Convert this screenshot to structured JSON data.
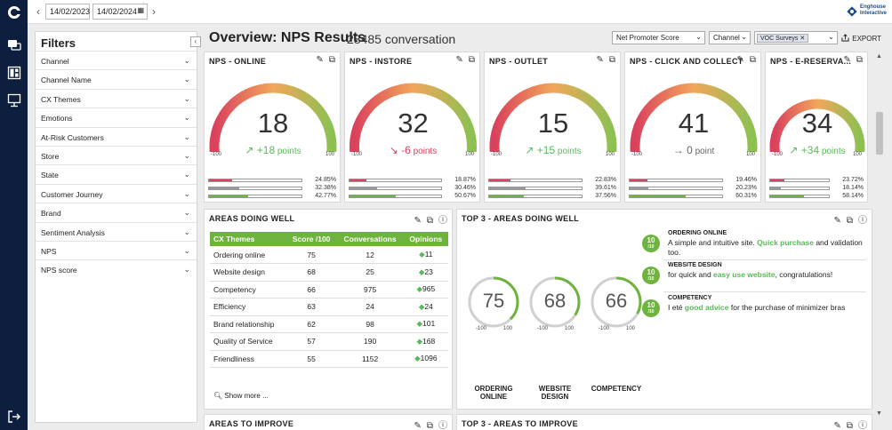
{
  "toolbar": {
    "date_from": "14/02/2023",
    "date_to": "14/02/2024"
  },
  "brand": {
    "name_line1": "Enghouse",
    "name_line2": "Interactive"
  },
  "filters": {
    "title": "Filters",
    "items": [
      "Channel",
      "Channel Name",
      "CX Themes",
      "Emotions",
      "At-Risk Customers",
      "Store",
      "State",
      "Customer Journey",
      "Brand",
      "Sentiment Analysis",
      "NPS",
      "NPS score"
    ]
  },
  "header": {
    "title": "Overview: NPS Results",
    "subtitle": "28485 conversation",
    "metric_select": "Net Promoter Score",
    "channel_select": "Channel",
    "survey_chip": "VOC Surveys",
    "export_label": "EXPORT"
  },
  "gauge_axis": {
    "min": "-100",
    "max": "100"
  },
  "nps_cards": [
    {
      "title": "NPS - ONLINE",
      "value": "18",
      "trend_dir": "up",
      "trend_value": "+18",
      "trend_unit": "points",
      "bars": [
        "24.85%",
        "32.38%",
        "42.77%"
      ],
      "bar_fractions": [
        0.2485,
        0.3238,
        0.4277
      ]
    },
    {
      "title": "NPS - INSTORE",
      "value": "32",
      "trend_dir": "down",
      "trend_value": "-6",
      "trend_unit": "points",
      "bars": [
        "18.87%",
        "30.46%",
        "50.67%"
      ],
      "bar_fractions": [
        0.1887,
        0.3046,
        0.5067
      ]
    },
    {
      "title": "NPS - OUTLET",
      "value": "15",
      "trend_dir": "up",
      "trend_value": "+15",
      "trend_unit": "points",
      "bars": [
        "22.83%",
        "39.61%",
        "37.56%"
      ],
      "bar_fractions": [
        0.2283,
        0.3961,
        0.3756
      ]
    },
    {
      "title": "NPS - CLICK AND COLLECT",
      "value": "41",
      "trend_dir": "flat",
      "trend_value": "0",
      "trend_unit": "point",
      "bars": [
        "19.46%",
        "20.23%",
        "60.31%"
      ],
      "bar_fractions": [
        0.1946,
        0.2023,
        0.6031
      ]
    },
    {
      "title": "NPS - E-RESERVA...",
      "value": "34",
      "trend_dir": "up",
      "trend_value": "+34",
      "trend_unit": "points",
      "bars": [
        "23.72%",
        "18.14%",
        "58.14%"
      ],
      "bar_fractions": [
        0.2372,
        0.1814,
        0.5814
      ]
    }
  ],
  "areas_doing_well": {
    "title": "AREAS DOING WELL",
    "columns": [
      "CX Themes",
      "Score /100",
      "Conversations",
      "Opinions"
    ],
    "rows": [
      [
        "Ordering online",
        "75",
        "12",
        "11"
      ],
      [
        "Website design",
        "68",
        "25",
        "23"
      ],
      [
        "Competency",
        "66",
        "975",
        "965"
      ],
      [
        "Efficiency",
        "63",
        "24",
        "24"
      ],
      [
        "Brand relationship",
        "62",
        "98",
        "101"
      ],
      [
        "Quality of Service",
        "57",
        "190",
        "168"
      ],
      [
        "Friendliness",
        "55",
        "1152",
        "1096"
      ]
    ],
    "show_more": "Show more ..."
  },
  "top3": {
    "title": "TOP 3 - AREAS DOING WELL",
    "rings": [
      {
        "value": "75",
        "fraction": 0.75,
        "label_line1": "ORDERING",
        "label_line2": "ONLINE"
      },
      {
        "value": "68",
        "fraction": 0.68,
        "label_line1": "WEBSITE",
        "label_line2": "DESIGN"
      },
      {
        "value": "66",
        "fraction": 0.66,
        "label_line1": "COMPETENCY",
        "label_line2": ""
      }
    ],
    "ring_axis": {
      "min": "-100",
      "max": "100"
    },
    "verbatims": [
      {
        "score": "10",
        "scale": "/10",
        "heading": "ORDERING ONLINE",
        "before": "A simple and intuitive site. ",
        "highlight": "Quick purchase",
        "after": " and validation too."
      },
      {
        "score": "10",
        "scale": "/10",
        "heading": "WEBSITE DESIGN",
        "before": "for quick and ",
        "highlight": "easy use website",
        "after": ", congratulations!"
      },
      {
        "score": "10",
        "scale": "/10",
        "heading": "COMPETENCY",
        "before": "I eté ",
        "highlight": "good advice",
        "after": " for the purchase of minimizer bras"
      }
    ]
  },
  "bottom_panels": {
    "left_title": "AREAS TO IMPROVE",
    "right_title": "TOP 3 - AREAS TO IMPROVE"
  },
  "colors": {
    "rail": "#0d1e3f",
    "accent_green": "#6fb33f",
    "detractor": "#d9415d",
    "passive": "#999999",
    "promoter": "#6fb33f"
  }
}
